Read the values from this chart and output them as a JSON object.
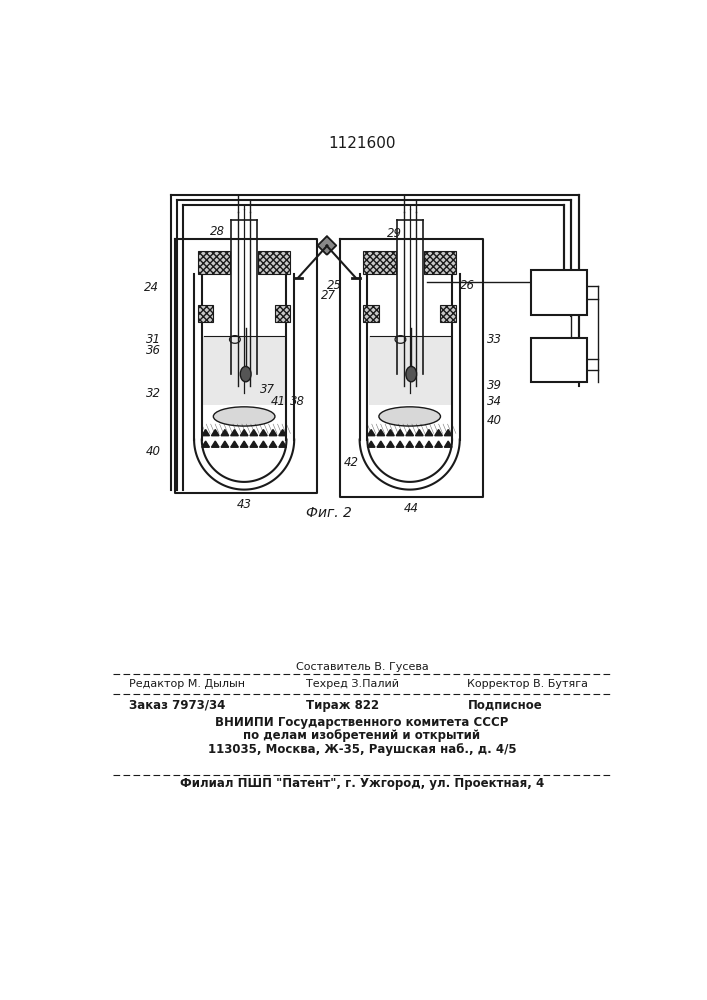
{
  "title": "1121600",
  "fig_caption": "Фиг. 2",
  "footer_line1_center_top": "Составитель В. Гусева",
  "footer_line1_left": "Редактор М. Дылын",
  "footer_line1_center": "Техред З.Палий",
  "footer_line1_right": "Корректор В. Бутяга",
  "footer_line2_left": "Заказ 7973/34",
  "footer_line2_center": "Тираж 822",
  "footer_line2_right": "Подписное",
  "footer_line3": "ВНИИПИ Государственного комитета СССР",
  "footer_line4": "по делам изобретений и открытий",
  "footer_line5": "113035, Москва, Ж-35, Раушская наб., д. 4/5",
  "footer_line6": "Филиал ПШП \"Патент\", г. Ужгород, ул. Проектная, 4",
  "bg_color": "#ffffff",
  "drawing_color": "#1a1a1a"
}
